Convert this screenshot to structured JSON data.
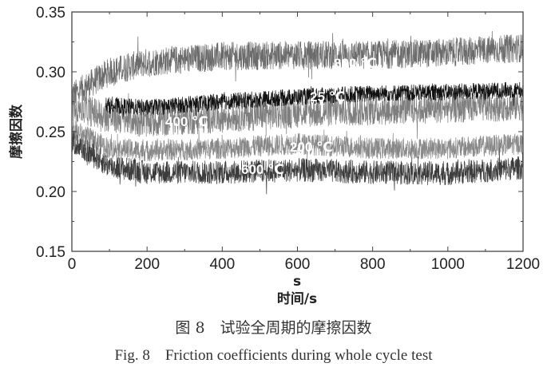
{
  "chart_data": {
    "type": "line",
    "title": "",
    "xlabel_unit_mark": "s",
    "xlabel": "时间/s",
    "ylabel": "摩擦因数",
    "xlim": [
      0,
      1200
    ],
    "ylim": [
      0.15,
      0.35
    ],
    "xticks": [
      "0",
      "200",
      "400",
      "600",
      "800",
      "1000",
      "1200"
    ],
    "yticks": [
      "0.15",
      "0.20",
      "0.25",
      "0.30",
      "0.35"
    ],
    "grid": false,
    "series": [
      {
        "name": "800 ℃",
        "color": "#6b6b6b",
        "band": 0.012,
        "x": [
          0,
          100,
          200,
          400,
          600,
          800,
          1000,
          1200
        ],
        "y": [
          0.28,
          0.3,
          0.308,
          0.313,
          0.314,
          0.314,
          0.316,
          0.32
        ]
      },
      {
        "name": "400 ℃",
        "color": "#7e7e7e",
        "band": 0.013,
        "x": [
          0,
          100,
          200,
          400,
          600,
          800,
          1000,
          1200
        ],
        "y": [
          0.272,
          0.262,
          0.258,
          0.262,
          0.266,
          0.268,
          0.27,
          0.272
        ]
      },
      {
        "name": "200 ℃",
        "color": "#888888",
        "band": 0.009,
        "x": [
          0,
          100,
          200,
          400,
          600,
          800,
          1000,
          1200
        ],
        "y": [
          0.252,
          0.236,
          0.234,
          0.236,
          0.24,
          0.236,
          0.236,
          0.24
        ]
      },
      {
        "name": "25 ℃",
        "color": "#111111",
        "band": 0.007,
        "x": [
          90,
          200,
          400,
          600,
          800,
          1000,
          1200
        ],
        "y": [
          0.272,
          0.27,
          0.275,
          0.279,
          0.282,
          0.283,
          0.285
        ]
      },
      {
        "name": "600 ℃",
        "color": "#3c3c3c",
        "band": 0.01,
        "x": [
          0,
          100,
          200,
          400,
          600,
          800,
          1000,
          1200
        ],
        "y": [
          0.242,
          0.221,
          0.216,
          0.216,
          0.218,
          0.216,
          0.215,
          0.22
        ]
      }
    ]
  },
  "caption": {
    "cn": "图 8　试验全周期的摩擦因数",
    "en": "Fig. 8　Friction coefficients during whole cycle test"
  }
}
